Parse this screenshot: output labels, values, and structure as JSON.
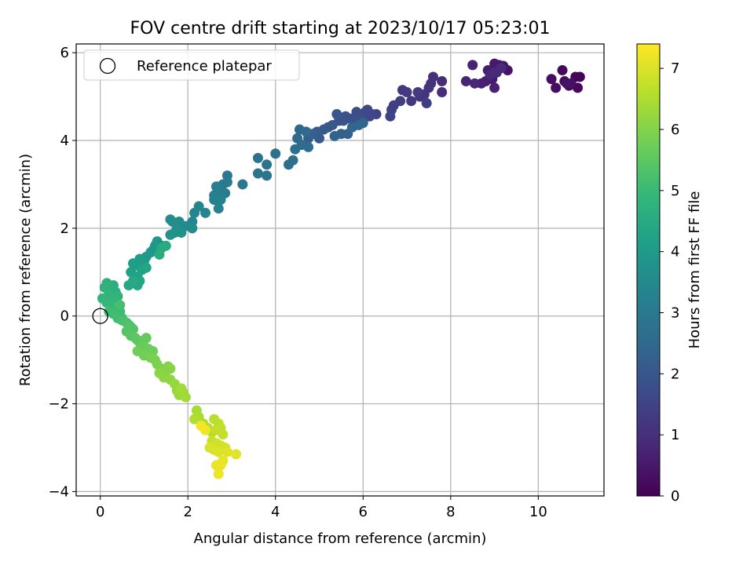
{
  "chart_data": {
    "type": "scatter",
    "title": "FOV centre drift starting at 2023/10/17 05:23:01",
    "xlabel": "Angular distance from reference (arcmin)",
    "ylabel": "Rotation from reference (arcmin)",
    "xlim": [
      -0.55,
      11.5
    ],
    "ylim": [
      -4.1,
      6.2
    ],
    "xticks": [
      0,
      2,
      4,
      6,
      8,
      10
    ],
    "yticks": [
      -4,
      -2,
      0,
      2,
      4,
      6
    ],
    "ytick_labels": [
      "−4",
      "−2",
      "0",
      "2",
      "4",
      "6"
    ],
    "grid": true,
    "legend": {
      "location": "top-left",
      "entries": [
        "Reference platepar"
      ]
    },
    "reference_point": {
      "x": 0,
      "y": 0,
      "label": "Reference platepar"
    },
    "colorbar": {
      "label": "Hours from first FF file",
      "range": [
        0,
        7.4
      ],
      "ticks": [
        0,
        1,
        2,
        3,
        4,
        5,
        6,
        7
      ],
      "colormap": "viridis",
      "colors": [
        "#440154",
        "#482878",
        "#3e4989",
        "#31688e",
        "#26828e",
        "#1f9e89",
        "#35b779",
        "#6ece58",
        "#b5de2b",
        "#fde725"
      ]
    },
    "points_columns": [
      "x",
      "y",
      "hours"
    ],
    "points": [
      [
        10.85,
        5.45
      ],
      [
        10.95,
        5.45
      ],
      [
        10.7,
        5.25
      ],
      [
        10.9,
        5.2
      ],
      [
        10.55,
        5.6
      ],
      [
        10.6,
        5.35
      ],
      [
        10.3,
        5.4
      ],
      [
        10.4,
        5.2
      ],
      [
        10.75,
        5.3
      ],
      [
        10.65,
        5.3
      ],
      [
        9.3,
        5.6
      ],
      [
        9.2,
        5.7
      ],
      [
        9.1,
        5.72
      ],
      [
        9.0,
        5.75
      ],
      [
        8.95,
        5.4
      ],
      [
        8.85,
        5.6
      ],
      [
        8.8,
        5.35
      ],
      [
        8.7,
        5.3
      ],
      [
        9.0,
        5.2
      ],
      [
        8.5,
        5.72
      ],
      [
        8.35,
        5.35
      ],
      [
        8.55,
        5.3
      ],
      [
        8.9,
        5.5
      ],
      [
        9.05,
        5.55
      ],
      [
        9.15,
        5.65
      ],
      [
        7.8,
        5.1
      ],
      [
        7.8,
        5.35
      ],
      [
        7.6,
        5.45
      ],
      [
        7.55,
        5.3
      ],
      [
        7.5,
        5.2
      ],
      [
        7.4,
        5.05
      ],
      [
        7.3,
        5.0
      ],
      [
        7.1,
        4.9
      ],
      [
        6.9,
        5.15
      ],
      [
        7.0,
        5.1
      ],
      [
        7.25,
        5.1
      ],
      [
        7.45,
        4.85
      ],
      [
        6.85,
        4.9
      ],
      [
        6.7,
        4.8
      ],
      [
        6.65,
        4.7
      ],
      [
        6.62,
        4.55
      ],
      [
        6.3,
        4.6
      ],
      [
        6.2,
        4.6
      ],
      [
        6.15,
        4.55
      ],
      [
        6.1,
        4.7
      ],
      [
        6.05,
        4.65
      ],
      [
        6.0,
        4.55
      ],
      [
        5.9,
        4.6
      ],
      [
        5.85,
        4.65
      ],
      [
        5.8,
        4.5
      ],
      [
        5.7,
        4.5
      ],
      [
        5.6,
        4.55
      ],
      [
        5.55,
        4.45
      ],
      [
        5.45,
        4.45
      ],
      [
        5.4,
        4.6
      ],
      [
        5.3,
        4.35
      ],
      [
        5.2,
        4.3
      ],
      [
        5.1,
        4.25
      ],
      [
        5.0,
        4.05
      ],
      [
        4.95,
        4.2
      ],
      [
        4.75,
        4.05
      ],
      [
        4.85,
        4.15
      ],
      [
        5.65,
        4.15
      ],
      [
        5.5,
        4.15
      ],
      [
        5.35,
        4.1
      ],
      [
        6.0,
        4.4
      ],
      [
        5.75,
        4.3
      ],
      [
        5.9,
        4.35
      ],
      [
        4.55,
        4.25
      ],
      [
        4.7,
        4.2
      ],
      [
        4.5,
        4.05
      ],
      [
        4.6,
        3.9
      ],
      [
        4.75,
        3.85
      ],
      [
        4.45,
        3.8
      ],
      [
        4.4,
        3.55
      ],
      [
        4.3,
        3.45
      ],
      [
        4.0,
        3.7
      ],
      [
        3.8,
        3.45
      ],
      [
        3.6,
        3.6
      ],
      [
        3.6,
        3.25
      ],
      [
        3.8,
        3.2
      ],
      [
        3.25,
        3.0
      ],
      [
        2.9,
        3.2
      ],
      [
        2.9,
        3.05
      ],
      [
        2.8,
        3.0
      ],
      [
        2.85,
        2.8
      ],
      [
        2.7,
        2.85
      ],
      [
        2.65,
        2.95
      ],
      [
        2.6,
        2.75
      ],
      [
        2.6,
        2.65
      ],
      [
        2.75,
        2.65
      ],
      [
        2.7,
        2.45
      ],
      [
        2.4,
        2.35
      ],
      [
        2.25,
        2.5
      ],
      [
        2.15,
        2.35
      ],
      [
        2.1,
        2.15
      ],
      [
        1.95,
        2.05
      ],
      [
        2.1,
        2.0
      ],
      [
        1.8,
        2.15
      ],
      [
        1.6,
        2.2
      ],
      [
        1.65,
        2.15
      ],
      [
        1.75,
        2.0
      ],
      [
        1.85,
        1.9
      ],
      [
        1.7,
        1.9
      ],
      [
        1.6,
        1.85
      ],
      [
        1.4,
        1.6
      ],
      [
        1.3,
        1.7
      ],
      [
        1.25,
        1.6
      ],
      [
        1.2,
        1.5
      ],
      [
        1.15,
        1.45
      ],
      [
        1.05,
        1.35
      ],
      [
        1.0,
        1.25
      ],
      [
        0.95,
        1.2
      ],
      [
        0.9,
        1.3
      ],
      [
        0.85,
        1.15
      ],
      [
        0.75,
        1.2
      ],
      [
        0.7,
        1.0
      ],
      [
        0.85,
        0.9
      ],
      [
        0.95,
        1.05
      ],
      [
        1.05,
        1.1
      ],
      [
        0.9,
        0.8
      ],
      [
        0.85,
        0.7
      ],
      [
        0.65,
        0.7
      ],
      [
        0.75,
        0.8
      ],
      [
        1.4,
        1.55
      ],
      [
        1.5,
        1.6
      ],
      [
        1.35,
        1.4
      ],
      [
        0.3,
        0.7
      ],
      [
        0.25,
        0.6
      ],
      [
        0.35,
        0.55
      ],
      [
        0.15,
        0.75
      ],
      [
        0.1,
        0.65
      ],
      [
        0.2,
        0.5
      ],
      [
        0.4,
        0.45
      ],
      [
        0.3,
        0.35
      ],
      [
        0.05,
        0.4
      ],
      [
        0.15,
        0.3
      ],
      [
        0.25,
        0.25
      ],
      [
        0.35,
        0.15
      ],
      [
        0.45,
        0.1
      ],
      [
        0.2,
        0.1
      ],
      [
        0.3,
        0.05
      ],
      [
        0.4,
        -0.05
      ],
      [
        0.5,
        -0.05
      ],
      [
        0.45,
        0.25
      ],
      [
        0.5,
        -0.1
      ],
      [
        0.6,
        -0.15
      ],
      [
        0.65,
        -0.2
      ],
      [
        0.7,
        -0.25
      ],
      [
        0.75,
        -0.3
      ],
      [
        0.6,
        -0.35
      ],
      [
        0.7,
        -0.45
      ],
      [
        0.8,
        -0.5
      ],
      [
        0.85,
        -0.55
      ],
      [
        0.9,
        -0.6
      ],
      [
        1.0,
        -0.55
      ],
      [
        1.05,
        -0.5
      ],
      [
        0.95,
        -0.7
      ],
      [
        1.1,
        -0.75
      ],
      [
        1.2,
        -0.8
      ],
      [
        0.85,
        -0.8
      ],
      [
        1.0,
        -0.9
      ],
      [
        1.15,
        -0.95
      ],
      [
        1.25,
        -1.0
      ],
      [
        1.3,
        -1.1
      ],
      [
        1.4,
        -1.2
      ],
      [
        1.5,
        -1.25
      ],
      [
        1.55,
        -1.15
      ],
      [
        1.6,
        -1.2
      ],
      [
        1.35,
        -1.3
      ],
      [
        1.45,
        -1.4
      ],
      [
        1.6,
        -1.45
      ],
      [
        1.7,
        -1.55
      ],
      [
        1.75,
        -1.7
      ],
      [
        1.8,
        -1.8
      ],
      [
        1.9,
        -1.75
      ],
      [
        1.95,
        -1.85
      ],
      [
        1.85,
        -1.65
      ],
      [
        2.2,
        -2.15
      ],
      [
        2.25,
        -2.3
      ],
      [
        2.35,
        -2.45
      ],
      [
        2.15,
        -2.35
      ],
      [
        2.45,
        -2.55
      ],
      [
        2.55,
        -2.65
      ],
      [
        2.6,
        -2.35
      ],
      [
        2.7,
        -2.45
      ],
      [
        2.75,
        -2.55
      ],
      [
        2.65,
        -2.6
      ],
      [
        2.8,
        -2.7
      ],
      [
        2.55,
        -2.85
      ],
      [
        2.65,
        -2.9
      ],
      [
        2.75,
        -2.95
      ],
      [
        2.85,
        -3.0
      ],
      [
        2.6,
        -3.05
      ],
      [
        2.5,
        -3.0
      ],
      [
        2.7,
        -3.1
      ],
      [
        2.9,
        -3.1
      ],
      [
        3.1,
        -3.15
      ],
      [
        2.8,
        -3.3
      ],
      [
        2.65,
        -3.4
      ],
      [
        2.75,
        -3.4
      ],
      [
        2.7,
        -3.6
      ],
      [
        2.4,
        -2.6
      ],
      [
        2.3,
        -2.5
      ]
    ]
  }
}
